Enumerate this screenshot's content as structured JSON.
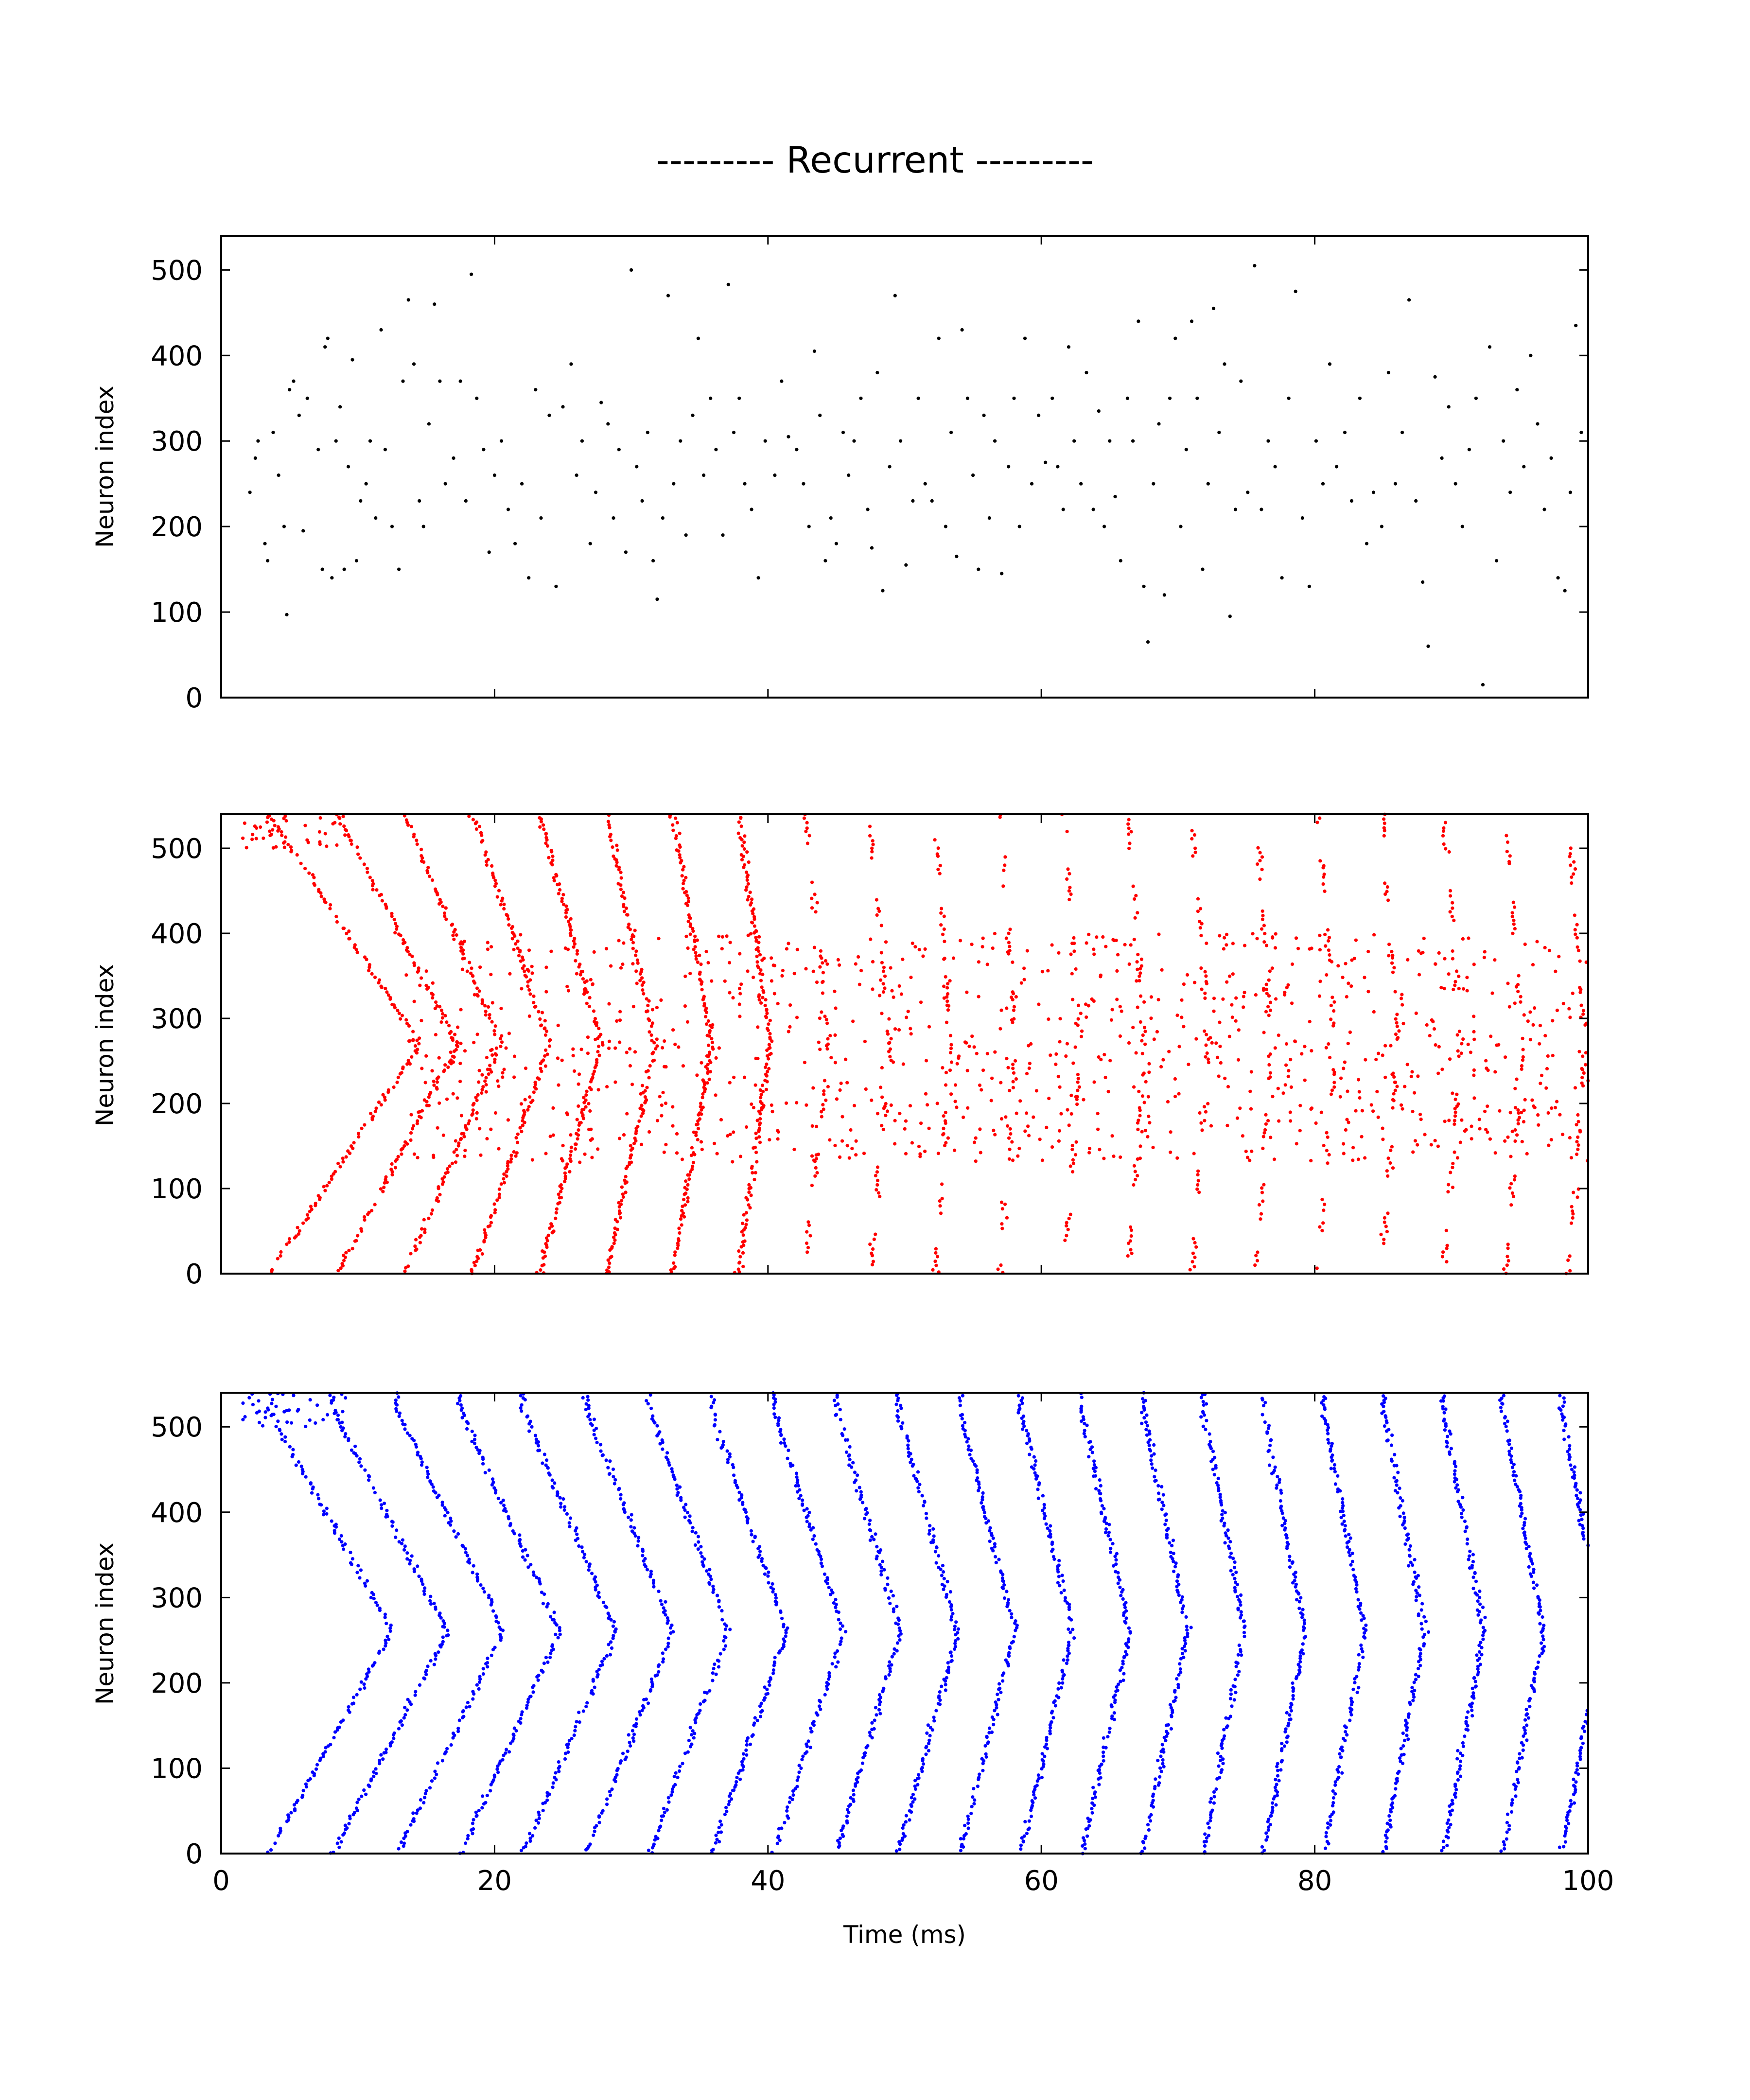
{
  "figure": {
    "title": "--------- Recurrent ---------",
    "xlabel": "Time (ms)",
    "ylabel": "Neuron index"
  },
  "chart_data": [
    {
      "type": "scatter",
      "subtype": "spike-raster",
      "panel": "top",
      "color": "#000000",
      "title": "",
      "xlabel": "",
      "ylabel": "Neuron index",
      "xlim": [
        0,
        100
      ],
      "ylim": [
        0,
        540
      ],
      "xticks": [
        0,
        20,
        40,
        60,
        80,
        100
      ],
      "yticks": [
        0,
        100,
        200,
        300,
        400,
        500
      ],
      "xtick_labels_visible": false,
      "grid": false,
      "series": [
        {
          "points": [
            [
              2.1,
              240
            ],
            [
              2.5,
              280
            ],
            [
              2.7,
              300
            ],
            [
              3.2,
              180
            ],
            [
              3.4,
              160
            ],
            [
              3.8,
              310
            ],
            [
              4.2,
              260
            ],
            [
              4.6,
              200
            ],
            [
              4.8,
              97
            ],
            [
              5.0,
              360
            ],
            [
              5.3,
              370
            ],
            [
              5.7,
              330
            ],
            [
              6.0,
              195
            ],
            [
              6.3,
              350
            ],
            [
              7.1,
              290
            ],
            [
              7.4,
              150
            ],
            [
              7.6,
              410
            ],
            [
              7.8,
              420
            ],
            [
              8.1,
              140
            ],
            [
              8.4,
              300
            ],
            [
              8.7,
              340
            ],
            [
              9.0,
              150
            ],
            [
              9.3,
              270
            ],
            [
              9.6,
              395
            ],
            [
              9.9,
              160
            ],
            [
              10.2,
              230
            ],
            [
              10.6,
              250
            ],
            [
              10.9,
              300
            ],
            [
              11.3,
              210
            ],
            [
              11.7,
              430
            ],
            [
              12.0,
              290
            ],
            [
              12.5,
              200
            ],
            [
              13.0,
              150
            ],
            [
              13.3,
              370
            ],
            [
              13.7,
              465
            ],
            [
              14.1,
              390
            ],
            [
              14.5,
              230
            ],
            [
              14.8,
              200
            ],
            [
              15.2,
              320
            ],
            [
              15.6,
              460
            ],
            [
              16.0,
              370
            ],
            [
              16.4,
              250
            ],
            [
              17.0,
              280
            ],
            [
              17.5,
              370
            ],
            [
              17.9,
              230
            ],
            [
              18.3,
              495
            ],
            [
              18.7,
              350
            ],
            [
              19.2,
              290
            ],
            [
              19.6,
              170
            ],
            [
              20.0,
              260
            ],
            [
              20.5,
              300
            ],
            [
              21.0,
              220
            ],
            [
              21.5,
              180
            ],
            [
              22.0,
              250
            ],
            [
              22.5,
              140
            ],
            [
              23.0,
              360
            ],
            [
              23.4,
              210
            ],
            [
              24.0,
              330
            ],
            [
              24.5,
              130
            ],
            [
              25.0,
              340
            ],
            [
              25.6,
              390
            ],
            [
              26.0,
              260
            ],
            [
              26.4,
              300
            ],
            [
              27.0,
              180
            ],
            [
              27.4,
              240
            ],
            [
              27.8,
              345
            ],
            [
              28.3,
              320
            ],
            [
              28.7,
              210
            ],
            [
              29.1,
              290
            ],
            [
              29.6,
              170
            ],
            [
              30.0,
              500
            ],
            [
              30.4,
              270
            ],
            [
              30.8,
              230
            ],
            [
              31.2,
              310
            ],
            [
              31.6,
              160
            ],
            [
              31.9,
              115
            ],
            [
              32.3,
              210
            ],
            [
              32.7,
              470
            ],
            [
              33.1,
              250
            ],
            [
              33.6,
              300
            ],
            [
              34.0,
              190
            ],
            [
              34.5,
              330
            ],
            [
              34.9,
              420
            ],
            [
              35.3,
              260
            ],
            [
              35.8,
              350
            ],
            [
              36.2,
              290
            ],
            [
              36.7,
              190
            ],
            [
              37.1,
              483
            ],
            [
              37.5,
              310
            ],
            [
              37.9,
              350
            ],
            [
              38.3,
              250
            ],
            [
              38.8,
              220
            ],
            [
              39.3,
              140
            ],
            [
              39.8,
              300
            ],
            [
              40.5,
              260
            ],
            [
              41.0,
              370
            ],
            [
              41.5,
              305
            ],
            [
              42.1,
              290
            ],
            [
              42.6,
              250
            ],
            [
              43.0,
              200
            ],
            [
              43.4,
              405
            ],
            [
              43.8,
              330
            ],
            [
              44.2,
              160
            ],
            [
              44.6,
              210
            ],
            [
              45.0,
              180
            ],
            [
              45.5,
              310
            ],
            [
              45.9,
              260
            ],
            [
              46.3,
              300
            ],
            [
              46.8,
              350
            ],
            [
              47.3,
              220
            ],
            [
              47.6,
              175
            ],
            [
              48.0,
              380
            ],
            [
              48.4,
              125
            ],
            [
              48.9,
              270
            ],
            [
              49.3,
              470
            ],
            [
              49.7,
              300
            ],
            [
              50.1,
              155
            ],
            [
              50.6,
              230
            ],
            [
              51.0,
              350
            ],
            [
              51.5,
              250
            ],
            [
              52.0,
              230
            ],
            [
              52.5,
              420
            ],
            [
              53.0,
              200
            ],
            [
              53.4,
              310
            ],
            [
              53.8,
              165
            ],
            [
              54.2,
              430
            ],
            [
              54.6,
              350
            ],
            [
              55.0,
              260
            ],
            [
              55.4,
              150
            ],
            [
              55.8,
              330
            ],
            [
              56.2,
              210
            ],
            [
              56.6,
              300
            ],
            [
              57.1,
              145
            ],
            [
              57.6,
              270
            ],
            [
              58.0,
              350
            ],
            [
              58.4,
              200
            ],
            [
              58.8,
              420
            ],
            [
              59.3,
              250
            ],
            [
              59.8,
              330
            ],
            [
              60.3,
              275
            ],
            [
              60.8,
              350
            ],
            [
              61.2,
              270
            ],
            [
              61.6,
              220
            ],
            [
              62.0,
              410
            ],
            [
              62.4,
              300
            ],
            [
              62.9,
              250
            ],
            [
              63.3,
              380
            ],
            [
              63.8,
              220
            ],
            [
              64.2,
              335
            ],
            [
              64.6,
              200
            ],
            [
              65.0,
              300
            ],
            [
              65.4,
              235
            ],
            [
              65.8,
              160
            ],
            [
              66.3,
              350
            ],
            [
              66.7,
              300
            ],
            [
              67.1,
              440
            ],
            [
              67.5,
              130
            ],
            [
              67.8,
              65
            ],
            [
              68.2,
              250
            ],
            [
              68.6,
              320
            ],
            [
              69.0,
              120
            ],
            [
              69.4,
              350
            ],
            [
              69.8,
              420
            ],
            [
              70.2,
              200
            ],
            [
              70.6,
              290
            ],
            [
              71.0,
              440
            ],
            [
              71.4,
              350
            ],
            [
              71.8,
              150
            ],
            [
              72.2,
              250
            ],
            [
              72.6,
              455
            ],
            [
              73.0,
              310
            ],
            [
              73.4,
              390
            ],
            [
              73.8,
              95
            ],
            [
              74.2,
              220
            ],
            [
              74.6,
              370
            ],
            [
              75.1,
              240
            ],
            [
              75.6,
              505
            ],
            [
              76.1,
              220
            ],
            [
              76.6,
              300
            ],
            [
              77.1,
              270
            ],
            [
              77.6,
              140
            ],
            [
              78.1,
              350
            ],
            [
              78.6,
              475
            ],
            [
              79.1,
              210
            ],
            [
              79.6,
              130
            ],
            [
              80.1,
              300
            ],
            [
              80.6,
              250
            ],
            [
              81.1,
              390
            ],
            [
              81.6,
              270
            ],
            [
              82.2,
              310
            ],
            [
              82.7,
              230
            ],
            [
              83.3,
              350
            ],
            [
              83.8,
              180
            ],
            [
              84.3,
              240
            ],
            [
              84.9,
              200
            ],
            [
              85.4,
              380
            ],
            [
              85.9,
              250
            ],
            [
              86.4,
              310
            ],
            [
              86.9,
              465
            ],
            [
              87.4,
              230
            ],
            [
              87.9,
              135
            ],
            [
              88.3,
              60
            ],
            [
              88.8,
              375
            ],
            [
              89.3,
              280
            ],
            [
              89.8,
              340
            ],
            [
              90.3,
              250
            ],
            [
              90.8,
              200
            ],
            [
              91.3,
              290
            ],
            [
              91.8,
              350
            ],
            [
              92.3,
              15
            ],
            [
              92.8,
              410
            ],
            [
              93.3,
              160
            ],
            [
              93.8,
              300
            ],
            [
              94.3,
              240
            ],
            [
              94.8,
              360
            ],
            [
              95.3,
              270
            ],
            [
              95.8,
              400
            ],
            [
              96.3,
              320
            ],
            [
              96.8,
              220
            ],
            [
              97.3,
              280
            ],
            [
              97.8,
              140
            ],
            [
              98.3,
              125
            ],
            [
              98.7,
              240
            ],
            [
              99.1,
              435
            ],
            [
              99.5,
              310
            ]
          ]
        }
      ]
    },
    {
      "type": "scatter",
      "subtype": "spike-raster",
      "panel": "middle",
      "color": "#ff0000",
      "title": "",
      "xlabel": "",
      "ylabel": "Neuron index",
      "xlim": [
        0,
        100
      ],
      "ylim": [
        0,
        540
      ],
      "xticks": [
        0,
        20,
        40,
        60,
        80,
        100
      ],
      "yticks": [
        0,
        100,
        200,
        300,
        400,
        500
      ],
      "xtick_labels_visible": false,
      "grid": false,
      "wave": {
        "first_onset_ms": 3.5,
        "period_start_ms": 5.0,
        "period_end_ms": 4.5,
        "first_wave_center_ms": 13.3,
        "first_wave_center_neuron": 270,
        "first_wave_lag_ms": 11,
        "lag_decay": 0.8,
        "min_lag_ms": 1.2,
        "after_ms": 40,
        "segment_length_neurons": 40,
        "background_band_neurons": [
          130,
          400
        ]
      }
    },
    {
      "type": "scatter",
      "subtype": "spike-raster",
      "panel": "bottom",
      "color": "#0000ff",
      "title": "",
      "xlabel": "Time (ms)",
      "ylabel": "Neuron index",
      "xlim": [
        0,
        100
      ],
      "ylim": [
        0,
        540
      ],
      "xticks": [
        0,
        20,
        40,
        60,
        80,
        100
      ],
      "yticks": [
        0,
        100,
        200,
        300,
        400,
        500
      ],
      "xtick_labels_visible": true,
      "grid": false,
      "wave": {
        "first_onset_ms": 3.5,
        "period_start_ms": 4.7,
        "period_end_ms": 4.3,
        "first_wave_center_ms": 15.0,
        "first_wave_center_neuron": 260,
        "first_wave_lag_ms": 9,
        "lag_decay": 0.93,
        "min_lag_ms": 3,
        "after_ms": 999,
        "segment_length_neurons": 540,
        "background_band_neurons": [
          0,
          0
        ]
      }
    }
  ]
}
